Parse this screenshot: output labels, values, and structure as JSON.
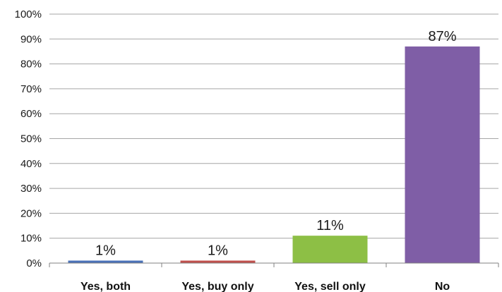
{
  "chart_data": {
    "type": "bar",
    "title": "",
    "xlabel": "",
    "ylabel": "",
    "categories": [
      "Yes, both",
      "Yes, buy only",
      "Yes, sell only",
      "No"
    ],
    "values": [
      1,
      1,
      11,
      87
    ],
    "data_labels": [
      "1%",
      "1%",
      "11%",
      "87%"
    ],
    "y_ticks": [
      "0%",
      "10%",
      "20%",
      "30%",
      "40%",
      "50%",
      "60%",
      "70%",
      "80%",
      "90%",
      "100%"
    ],
    "ylim": [
      0,
      100
    ],
    "grid": true,
    "legend": "none",
    "colors": {
      "bars": [
        "#4a72b8",
        "#c0504d",
        "#8dbf45",
        "#7f5ea6"
      ],
      "grid": "#a6a6a6",
      "axis": "#808080"
    }
  }
}
